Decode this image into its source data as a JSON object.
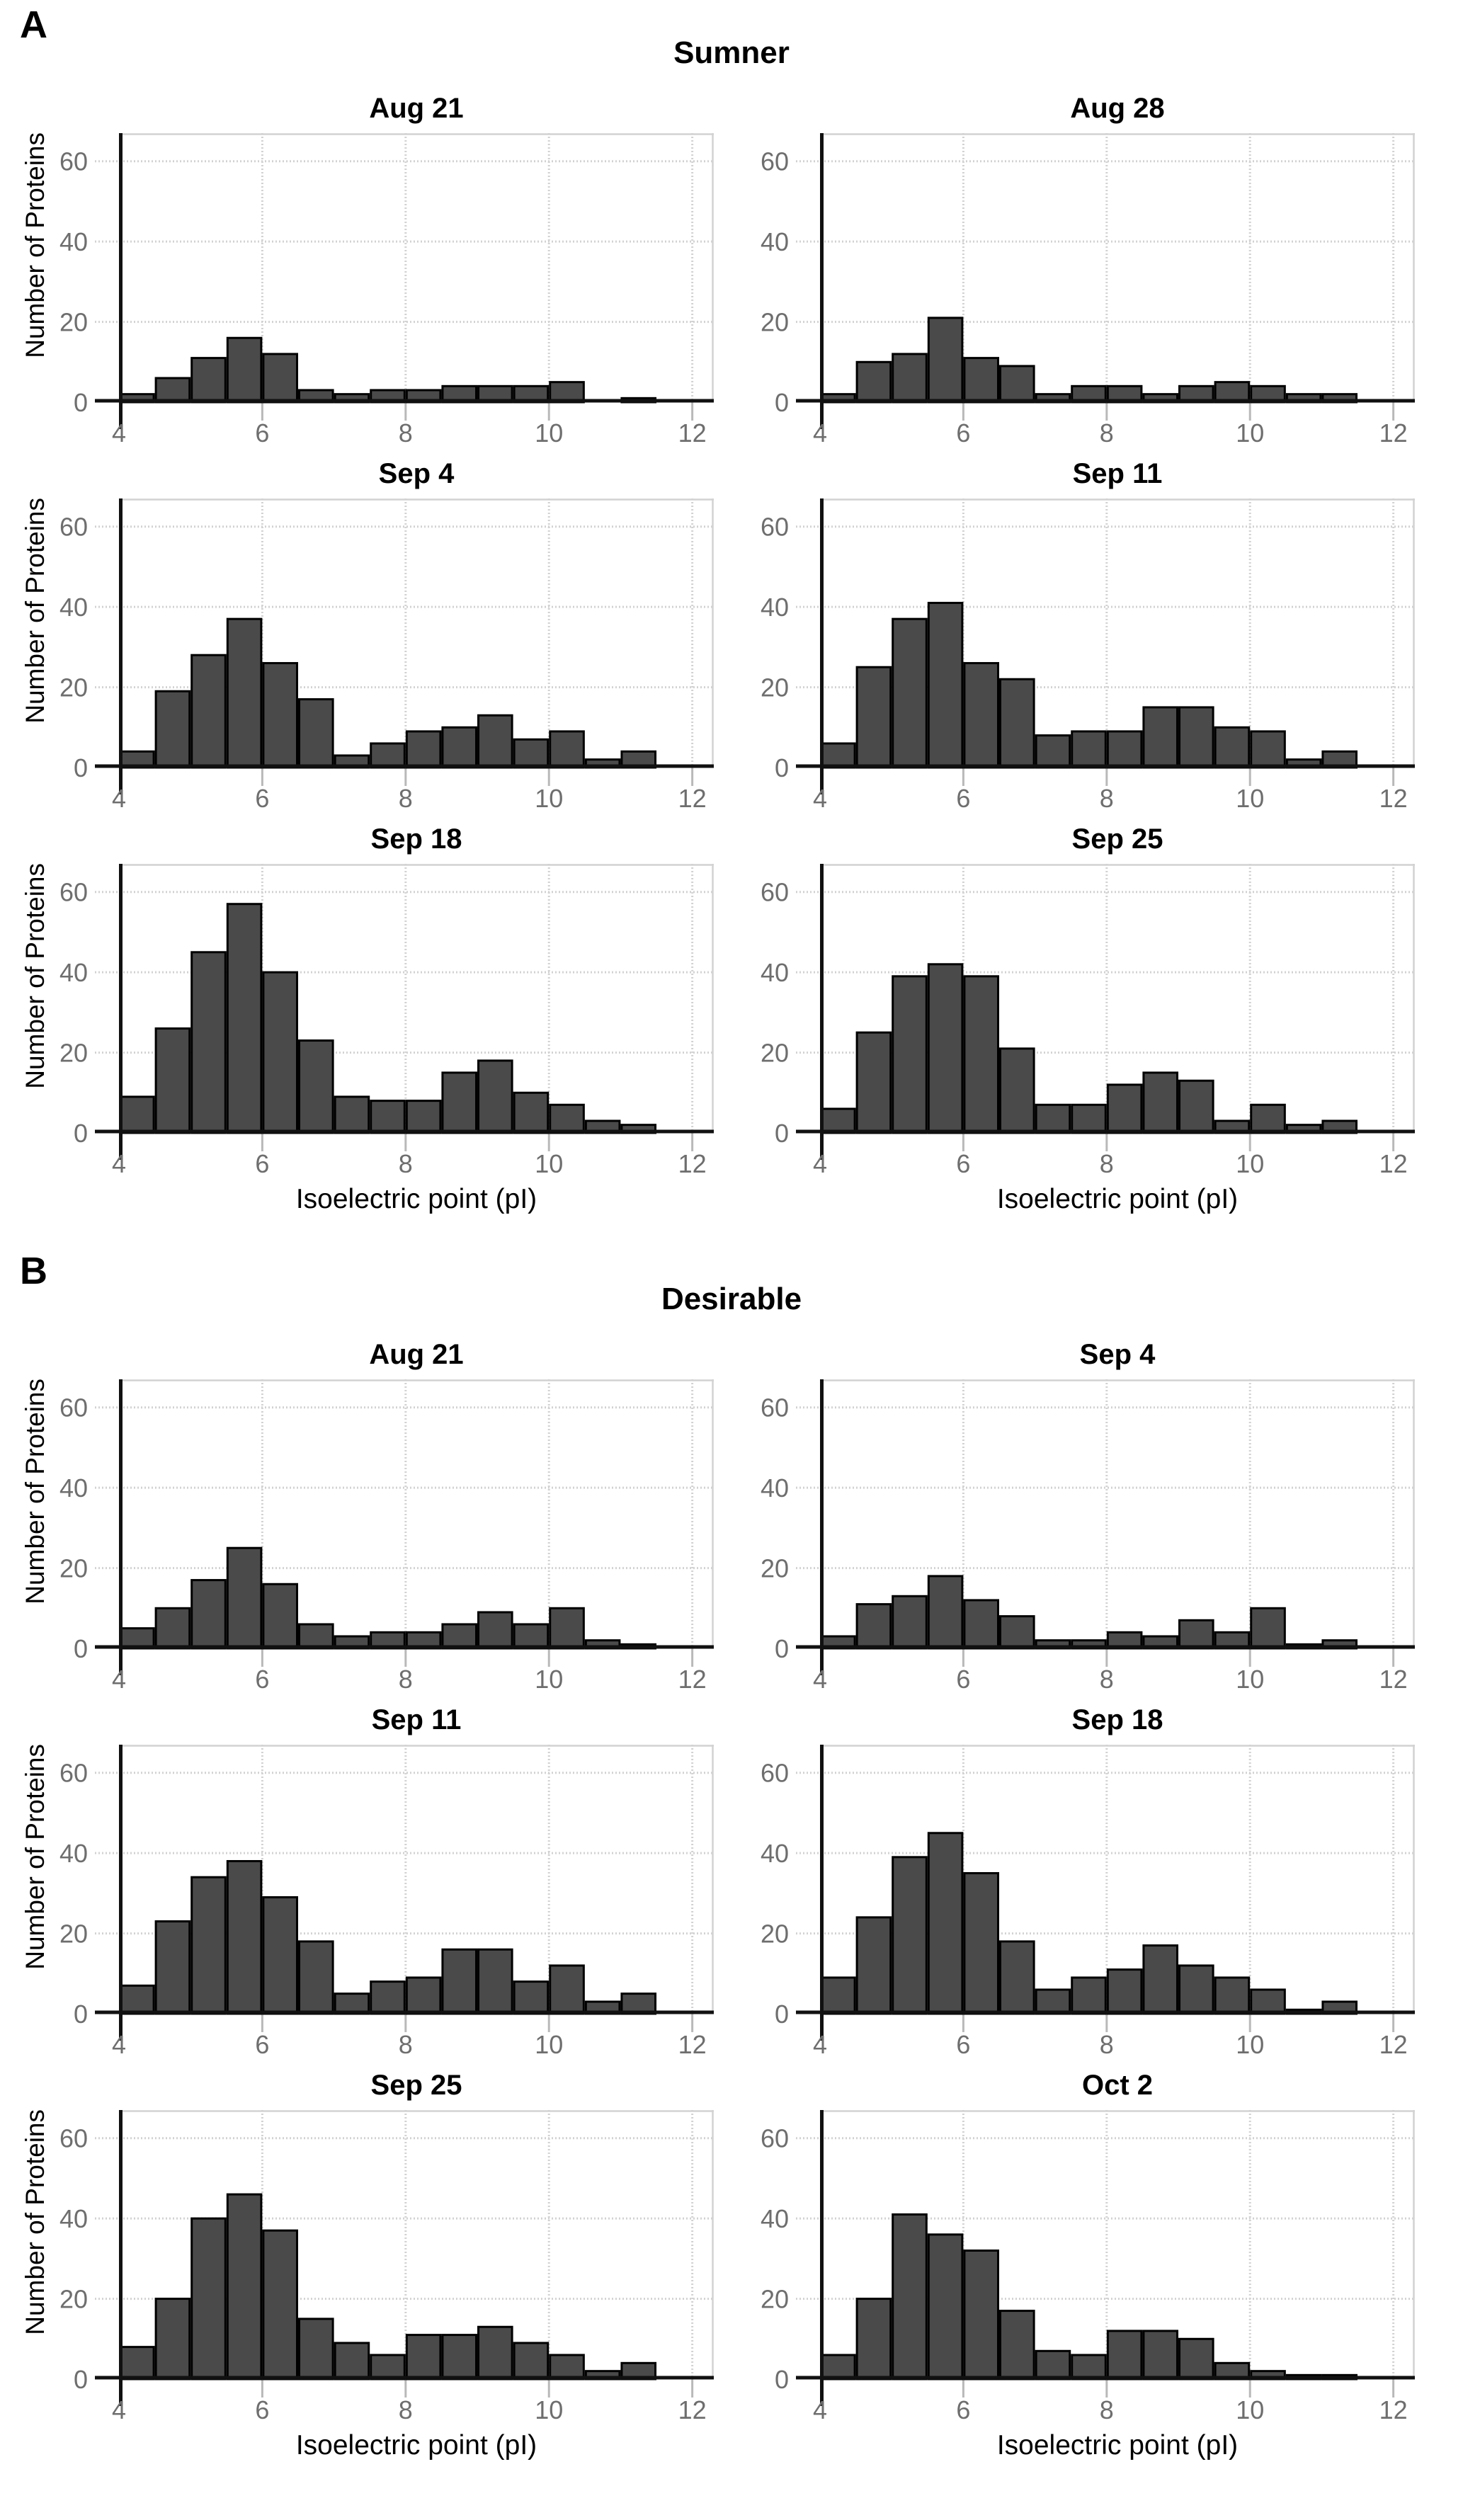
{
  "figure": {
    "description": "Histograms of number of proteins versus isoelectric point (pI) for two pecan cultivars across sampling dates",
    "background": "#ffffff"
  },
  "panels": [
    {
      "label": "A",
      "title": "Sumner"
    },
    {
      "label": "B",
      "title": "Desirable"
    }
  ],
  "axes": {
    "xlabel": "Isoelectric point (pI)",
    "ylabel": "Number of Proteins",
    "x_ticks": [
      4,
      6,
      8,
      10,
      12
    ],
    "y_ticks": [
      0,
      20,
      40,
      60
    ],
    "xlim": [
      4,
      12.3
    ],
    "ylim": [
      0,
      67
    ],
    "bin_start": 4,
    "bin_width": 0.5,
    "grid": "on",
    "legend": "none"
  },
  "colors": {
    "bar_fill": "#4a4a4a",
    "bar_stroke": "#000000",
    "grid": "#d2d2d2",
    "axis": "#111111",
    "tick_label": "#6e6e6e",
    "text": "#000000"
  },
  "chart_data": [
    {
      "type": "histogram",
      "panel_label": "A",
      "panel": "Sumner",
      "title": "Aug 21",
      "bin_start": 4,
      "bin_width": 0.5,
      "values": [
        2,
        6,
        11,
        16,
        12,
        3,
        2,
        3,
        3,
        4,
        4,
        4,
        5,
        0,
        1,
        0
      ]
    },
    {
      "type": "histogram",
      "panel_label": "A",
      "panel": "Sumner",
      "title": "Aug 28",
      "bin_start": 4,
      "bin_width": 0.5,
      "values": [
        2,
        10,
        12,
        21,
        11,
        9,
        2,
        4,
        4,
        2,
        4,
        5,
        4,
        2,
        2,
        0
      ]
    },
    {
      "type": "histogram",
      "panel_label": "A",
      "panel": "Sumner",
      "title": "Sep 4",
      "bin_start": 4,
      "bin_width": 0.5,
      "values": [
        4,
        19,
        28,
        37,
        26,
        17,
        3,
        6,
        9,
        10,
        13,
        7,
        9,
        2,
        4,
        0
      ]
    },
    {
      "type": "histogram",
      "panel_label": "A",
      "panel": "Sumner",
      "title": "Sep 11",
      "bin_start": 4,
      "bin_width": 0.5,
      "values": [
        6,
        25,
        37,
        41,
        26,
        22,
        8,
        9,
        9,
        15,
        15,
        10,
        9,
        2,
        4,
        0
      ]
    },
    {
      "type": "histogram",
      "panel_label": "A",
      "panel": "Sumner",
      "title": "Sep 18",
      "bin_start": 4,
      "bin_width": 0.5,
      "values": [
        9,
        26,
        45,
        57,
        40,
        23,
        9,
        8,
        8,
        15,
        18,
        10,
        7,
        3,
        2,
        0
      ]
    },
    {
      "type": "histogram",
      "panel_label": "A",
      "panel": "Sumner",
      "title": "Sep 25",
      "bin_start": 4,
      "bin_width": 0.5,
      "values": [
        6,
        25,
        39,
        42,
        39,
        21,
        7,
        7,
        12,
        15,
        13,
        3,
        7,
        2,
        3,
        0
      ]
    },
    {
      "type": "histogram",
      "panel_label": "B",
      "panel": "Desirable",
      "title": "Aug 21",
      "bin_start": 4,
      "bin_width": 0.5,
      "values": [
        5,
        10,
        17,
        25,
        16,
        6,
        3,
        4,
        4,
        6,
        9,
        6,
        10,
        2,
        1,
        0
      ]
    },
    {
      "type": "histogram",
      "panel_label": "B",
      "panel": "Desirable",
      "title": "Sep 4",
      "bin_start": 4,
      "bin_width": 0.5,
      "values": [
        3,
        11,
        13,
        18,
        12,
        8,
        2,
        2,
        4,
        3,
        7,
        4,
        10,
        1,
        2,
        0
      ]
    },
    {
      "type": "histogram",
      "panel_label": "B",
      "panel": "Desirable",
      "title": "Sep 11",
      "bin_start": 4,
      "bin_width": 0.5,
      "values": [
        7,
        23,
        34,
        38,
        29,
        18,
        5,
        8,
        9,
        16,
        16,
        8,
        12,
        3,
        5,
        0
      ]
    },
    {
      "type": "histogram",
      "panel_label": "B",
      "panel": "Desirable",
      "title": "Sep 18",
      "bin_start": 4,
      "bin_width": 0.5,
      "values": [
        9,
        24,
        39,
        45,
        35,
        18,
        6,
        9,
        11,
        17,
        12,
        9,
        6,
        1,
        3,
        0
      ]
    },
    {
      "type": "histogram",
      "panel_label": "B",
      "panel": "Desirable",
      "title": "Sep 25",
      "bin_start": 4,
      "bin_width": 0.5,
      "values": [
        8,
        20,
        40,
        46,
        37,
        15,
        9,
        6,
        11,
        11,
        13,
        9,
        6,
        2,
        4,
        0
      ]
    },
    {
      "type": "histogram",
      "panel_label": "B",
      "panel": "Desirable",
      "title": "Oct 2",
      "bin_start": 4,
      "bin_width": 0.5,
      "values": [
        6,
        20,
        41,
        36,
        32,
        17,
        7,
        6,
        12,
        12,
        10,
        4,
        2,
        1,
        1,
        0
      ]
    }
  ]
}
